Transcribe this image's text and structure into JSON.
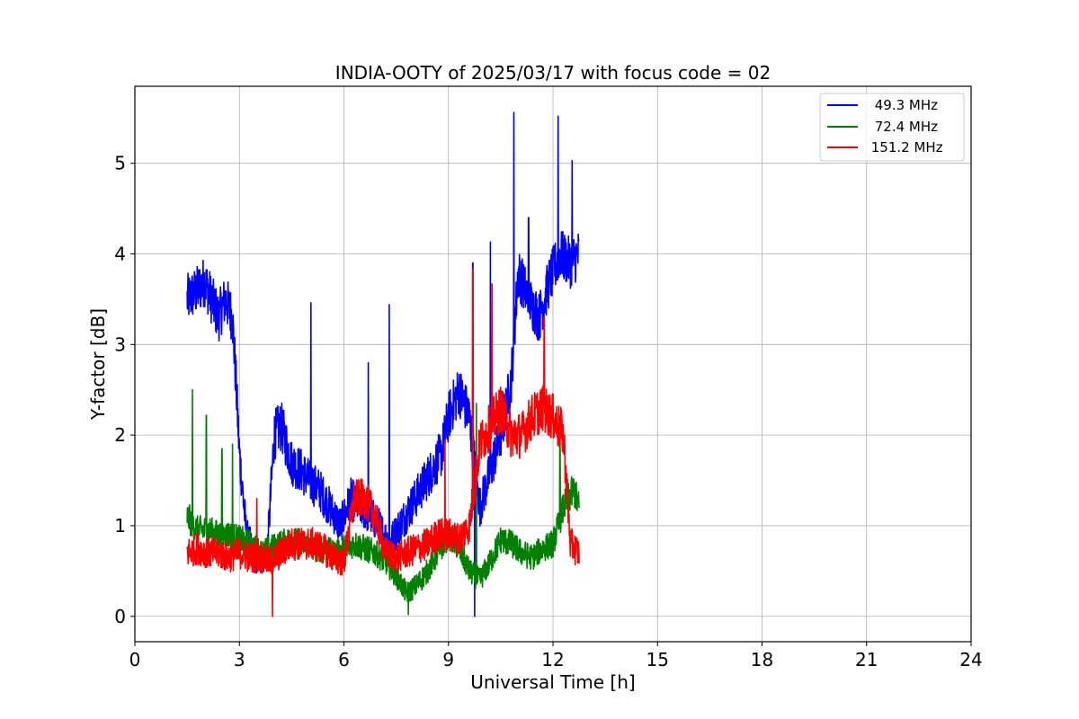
{
  "chart_data": {
    "type": "line",
    "title": "INDIA-OOTY of 2025/03/17 with focus code = 02",
    "xlabel": "Universal Time [h]",
    "ylabel": "Y-factor [dB]",
    "xlim": [
      0,
      24
    ],
    "ylim": [
      -0.28,
      5.85
    ],
    "xticks": [
      0,
      3,
      6,
      9,
      12,
      15,
      18,
      21,
      24
    ],
    "xtick_labels": [
      "0",
      "3",
      "6",
      "9",
      "12",
      "15",
      "18",
      "21",
      "24"
    ],
    "yticks": [
      0,
      1,
      2,
      3,
      4,
      5
    ],
    "ytick_labels": [
      "0",
      "1",
      "2",
      "3",
      "4",
      "5"
    ],
    "grid": true,
    "legend_position": "top-right",
    "series": [
      {
        "name": "49.3 MHz",
        "label": " 49.3 MHz",
        "color": "#0000ff",
        "x": [
          1.5,
          1.8,
          2.0,
          2.2,
          2.4,
          2.6,
          2.8,
          2.9,
          3.0,
          3.2,
          3.5,
          3.8,
          4.0,
          4.2,
          4.5,
          4.8,
          5.0,
          5.3,
          5.6,
          5.9,
          6.2,
          6.5,
          6.8,
          7.0,
          7.3,
          7.6,
          7.9,
          8.2,
          8.5,
          8.8,
          9.0,
          9.3,
          9.6,
          9.9,
          10.2,
          10.5,
          10.8,
          11.0,
          11.3,
          11.6,
          11.9,
          12.2,
          12.5,
          12.75
        ],
        "values": [
          3.5,
          3.6,
          3.7,
          3.5,
          3.3,
          3.5,
          3.3,
          2.6,
          1.8,
          0.9,
          0.6,
          0.7,
          2.0,
          2.1,
          1.7,
          1.6,
          1.5,
          1.4,
          1.2,
          1.0,
          1.3,
          1.2,
          1.1,
          1.0,
          0.8,
          1.0,
          1.2,
          1.4,
          1.6,
          1.8,
          2.2,
          2.5,
          2.2,
          1.2,
          1.6,
          2.0,
          2.6,
          3.8,
          3.5,
          3.3,
          3.7,
          4.0,
          3.9,
          4.0
        ],
        "spikes": [
          [
            5.05,
            3.46
          ],
          [
            7.3,
            3.44
          ],
          [
            6.7,
            2.8
          ],
          [
            10.2,
            4.13
          ],
          [
            9.7,
            3.9
          ],
          [
            10.88,
            5.56
          ],
          [
            12.15,
            5.52
          ],
          [
            12.55,
            5.03
          ],
          [
            11.3,
            4.4
          ],
          [
            9.75,
            0.0
          ]
        ]
      },
      {
        "name": "72.4 MHz",
        "label": " 72.4 MHz",
        "color": "#008000",
        "x": [
          1.5,
          1.8,
          2.1,
          2.4,
          2.7,
          3.0,
          3.3,
          3.6,
          3.9,
          4.2,
          4.5,
          4.8,
          5.1,
          5.4,
          5.7,
          6.0,
          6.3,
          6.6,
          6.9,
          7.2,
          7.5,
          7.8,
          8.1,
          8.4,
          8.7,
          9.0,
          9.3,
          9.6,
          9.9,
          10.2,
          10.5,
          10.8,
          11.1,
          11.4,
          11.7,
          12.0,
          12.3,
          12.6,
          12.75
        ],
        "values": [
          1.1,
          0.95,
          0.95,
          0.9,
          0.9,
          0.85,
          0.8,
          0.7,
          0.75,
          0.8,
          0.85,
          0.8,
          0.75,
          0.75,
          0.7,
          0.75,
          0.8,
          0.75,
          0.7,
          0.6,
          0.45,
          0.25,
          0.35,
          0.5,
          0.7,
          0.9,
          0.75,
          0.5,
          0.4,
          0.6,
          0.85,
          0.8,
          0.7,
          0.65,
          0.75,
          0.8,
          1.2,
          1.4,
          1.2
        ],
        "spikes": [
          [
            1.65,
            2.5
          ],
          [
            2.05,
            2.22
          ],
          [
            2.5,
            1.85
          ],
          [
            2.8,
            1.9
          ],
          [
            9.8,
            2.35
          ],
          [
            12.2,
            2.0
          ],
          [
            7.85,
            0.02
          ]
        ]
      },
      {
        "name": "151.2 MHz",
        "label": " 151.2 MHz",
        "color": "#ff0000",
        "x": [
          1.5,
          1.8,
          2.1,
          2.4,
          2.7,
          3.0,
          3.3,
          3.6,
          3.9,
          4.2,
          4.5,
          4.8,
          5.1,
          5.4,
          5.7,
          6.0,
          6.3,
          6.6,
          6.9,
          7.2,
          7.5,
          7.8,
          8.1,
          8.4,
          8.7,
          9.0,
          9.3,
          9.6,
          9.9,
          10.2,
          10.5,
          10.8,
          11.1,
          11.4,
          11.7,
          12.0,
          12.3,
          12.5,
          12.75
        ],
        "values": [
          0.7,
          0.75,
          0.7,
          0.7,
          0.65,
          0.7,
          0.65,
          0.65,
          0.6,
          0.7,
          0.8,
          0.8,
          0.8,
          0.75,
          0.65,
          0.6,
          1.3,
          1.3,
          1.1,
          0.7,
          0.65,
          0.7,
          0.75,
          0.8,
          0.9,
          0.9,
          0.85,
          1.0,
          1.9,
          2.1,
          2.3,
          2.0,
          2.0,
          2.2,
          2.3,
          2.2,
          2.0,
          0.8,
          0.7
        ],
        "spikes": [
          [
            9.7,
            3.83
          ],
          [
            10.25,
            3.67
          ],
          [
            11.75,
            3.3
          ],
          [
            3.5,
            1.3
          ],
          [
            3.95,
            0.0
          ],
          [
            8.9,
            1.95
          ]
        ]
      }
    ]
  }
}
